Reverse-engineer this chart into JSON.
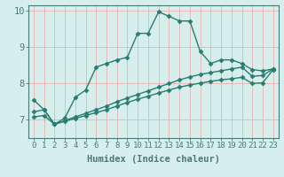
{
  "line1_x": [
    0,
    1,
    2,
    3,
    4,
    5,
    6,
    7,
    8,
    9,
    10,
    11,
    12,
    13,
    14,
    15,
    16,
    17,
    18,
    19,
    20,
    21,
    22,
    23
  ],
  "line1_y": [
    7.55,
    7.28,
    6.88,
    7.05,
    7.62,
    7.82,
    8.45,
    8.55,
    8.65,
    8.72,
    9.38,
    9.38,
    9.97,
    9.85,
    9.72,
    9.72,
    8.88,
    8.55,
    8.65,
    8.65,
    8.55,
    8.38,
    8.35,
    8.4
  ],
  "line2_x": [
    0,
    1,
    2,
    3,
    4,
    5,
    6,
    7,
    8,
    9,
    10,
    11,
    12,
    13,
    14,
    15,
    16,
    17,
    18,
    19,
    20,
    21,
    22,
    23
  ],
  "line2_y": [
    7.22,
    7.28,
    6.88,
    6.98,
    7.08,
    7.18,
    7.28,
    7.38,
    7.5,
    7.6,
    7.7,
    7.8,
    7.9,
    8.0,
    8.1,
    8.18,
    8.25,
    8.3,
    8.35,
    8.4,
    8.45,
    8.2,
    8.22,
    8.4
  ],
  "line3_x": [
    0,
    1,
    2,
    3,
    4,
    5,
    6,
    7,
    8,
    9,
    10,
    11,
    12,
    13,
    14,
    15,
    16,
    17,
    18,
    19,
    20,
    21,
    22,
    23
  ],
  "line3_y": [
    7.08,
    7.12,
    6.88,
    6.96,
    7.04,
    7.12,
    7.2,
    7.28,
    7.38,
    7.48,
    7.57,
    7.65,
    7.74,
    7.82,
    7.9,
    7.96,
    8.01,
    8.06,
    8.1,
    8.13,
    8.17,
    8.0,
    8.02,
    8.38
  ],
  "line_color": "#2a7d6e",
  "marker": "D",
  "markersize": 2.5,
  "linewidth": 1.0,
  "xlabel": "Humidex (Indice chaleur)",
  "ylim": [
    6.5,
    10.15
  ],
  "xlim": [
    -0.5,
    23.5
  ],
  "yticks": [
    7,
    8,
    9,
    10
  ],
  "xticks": [
    0,
    1,
    2,
    3,
    4,
    5,
    6,
    7,
    8,
    9,
    10,
    11,
    12,
    13,
    14,
    15,
    16,
    17,
    18,
    19,
    20,
    21,
    22,
    23
  ],
  "bg_color": "#d6eeec",
  "grid_color": "#e8b0b0",
  "axis_color": "#4a7a78",
  "xlabel_fontsize": 7.5,
  "tick_fontsize": 6.5
}
